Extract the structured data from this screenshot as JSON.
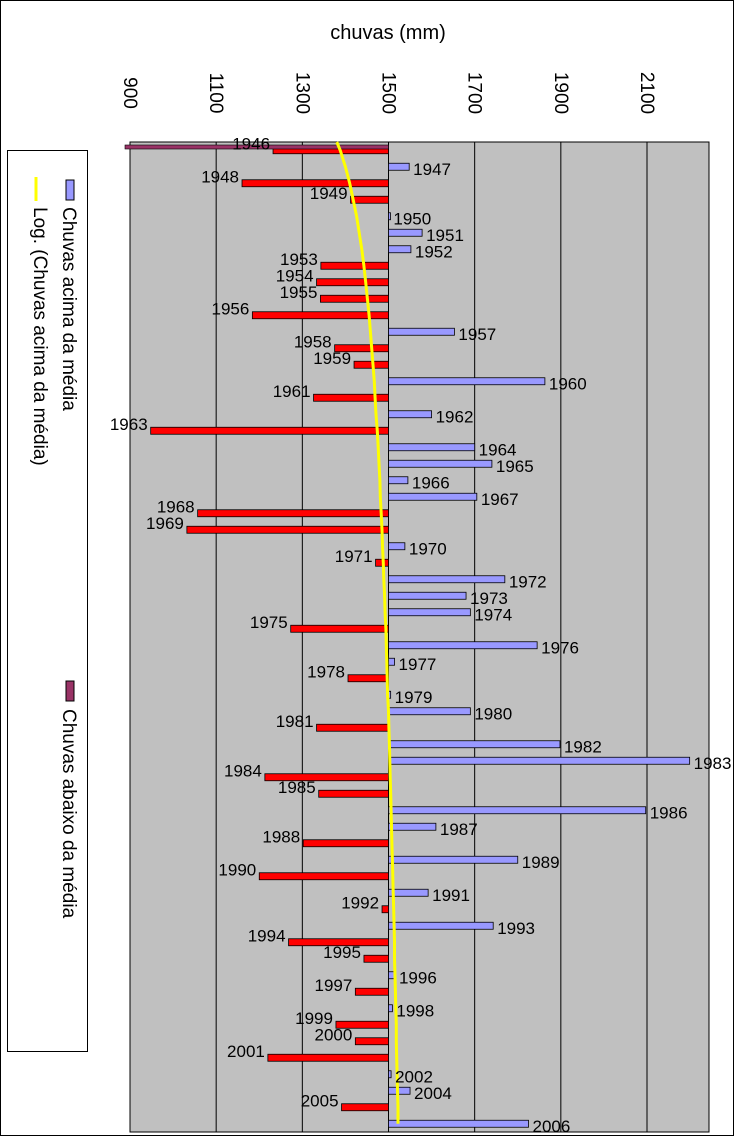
{
  "chart_data": {
    "type": "bar",
    "orientation": "horizontal",
    "title": "chuvas (mm)",
    "xlabel": "chuvas (mm)",
    "ylabel": "",
    "xlim": [
      900,
      2250
    ],
    "baseline": 1500,
    "xticks": [
      "900",
      "1100",
      "1300",
      "1500",
      "1700",
      "1900",
      "2100"
    ],
    "grid": true,
    "legend_placement": "left",
    "colors": {
      "above": "#9999ff",
      "below": "#ff0000",
      "below_legend": "#993366",
      "trend": "#ffff00",
      "plot_bg": "#c0c0c0"
    },
    "series": [
      {
        "name": "Chuvas acima da média"
      },
      {
        "name": "Chuvas abaixo da média"
      },
      {
        "name": "Log. (Chuvas acima da média)"
      }
    ],
    "categories": [
      "1946",
      "1947",
      "1948",
      "1949",
      "1950",
      "1951",
      "1952",
      "1953",
      "1954",
      "1955",
      "1956",
      "1957",
      "1958",
      "1959",
      "1960",
      "1961",
      "1962",
      "1963",
      "1964",
      "1965",
      "1966",
      "1967",
      "1968",
      "1969",
      "1970",
      "1971",
      "1972",
      "1973",
      "1974",
      "1975",
      "1976",
      "1977",
      "1978",
      "1979",
      "1980",
      "1981",
      "1982",
      "1983",
      "1984",
      "1985",
      "1986",
      "1987",
      "1988",
      "1989",
      "1990",
      "1991",
      "1992",
      "1993",
      "1994",
      "1995",
      "1996",
      "1997",
      "1998",
      "1999",
      "2000",
      "2001",
      "2002",
      "2004",
      "2005",
      "2006"
    ],
    "values": [
      1232,
      1548,
      1160,
      1412,
      1502,
      1578,
      1552,
      1343,
      1333,
      1342,
      1184,
      1653,
      1375,
      1420,
      1863,
      1326,
      1600,
      948,
      1700,
      1740,
      1545,
      1705,
      1057,
      1032,
      1538,
      1470,
      1770,
      1680,
      1690,
      1273,
      1845,
      1514,
      1406,
      1505,
      1690,
      1333,
      1898,
      2199,
      1213,
      1338,
      2097,
      1610,
      1302,
      1800,
      1200,
      1592,
      1485,
      1743,
      1268,
      1443,
      1515,
      1423,
      1509,
      1378,
      1423,
      1220,
      1506,
      1550,
      1391,
      1825
    ],
    "trend_values": [
      1388,
      1400,
      1410,
      1418,
      1426,
      1432,
      1438,
      1443,
      1447,
      1451,
      1455,
      1458,
      1461,
      1464,
      1467,
      1469,
      1471,
      1474,
      1476,
      1478,
      1480,
      1481,
      1483,
      1485,
      1486,
      1488,
      1489,
      1491,
      1492,
      1494,
      1495,
      1496,
      1497,
      1498,
      1500,
      1501,
      1502,
      1503,
      1504,
      1505,
      1506,
      1507,
      1508,
      1509,
      1510,
      1511,
      1512,
      1513,
      1514,
      1514,
      1515,
      1516,
      1517,
      1518,
      1518,
      1519,
      1520,
      1521,
      1522,
      1522
    ]
  }
}
